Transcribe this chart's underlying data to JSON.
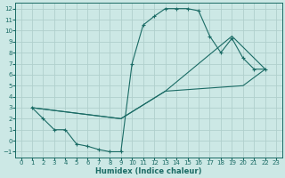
{
  "xlabel": "Humidex (Indice chaleur)",
  "xlim": [
    -0.5,
    23.5
  ],
  "ylim": [
    -1.5,
    12.5
  ],
  "xticks": [
    0,
    1,
    2,
    3,
    4,
    5,
    6,
    7,
    8,
    9,
    10,
    11,
    12,
    13,
    14,
    15,
    16,
    17,
    18,
    19,
    20,
    21,
    22,
    23
  ],
  "yticks": [
    -1,
    0,
    1,
    2,
    3,
    4,
    5,
    6,
    7,
    8,
    9,
    10,
    11,
    12
  ],
  "bg_color": "#cce8e5",
  "grid_color": "#b0d0cc",
  "line_color": "#1a6b65",
  "line1_x": [
    1,
    2,
    3,
    4,
    5,
    6,
    7,
    8,
    9,
    10,
    11,
    12,
    13,
    14,
    15,
    16,
    17,
    18,
    19,
    20,
    21,
    22
  ],
  "line1_y": [
    3,
    2,
    1,
    1,
    -0.3,
    -0.5,
    -0.8,
    -1,
    -1,
    7,
    10.5,
    11.3,
    12,
    12,
    12,
    11.8,
    9.5,
    8,
    9.3,
    7.5,
    6.5,
    6.5
  ],
  "line2_x": [
    1,
    9,
    13,
    20,
    22
  ],
  "line2_y": [
    3,
    2,
    4.5,
    5.0,
    6.5
  ],
  "line3_x": [
    1,
    9,
    13,
    19,
    22
  ],
  "line3_y": [
    3,
    2,
    4.5,
    9.5,
    6.5
  ]
}
